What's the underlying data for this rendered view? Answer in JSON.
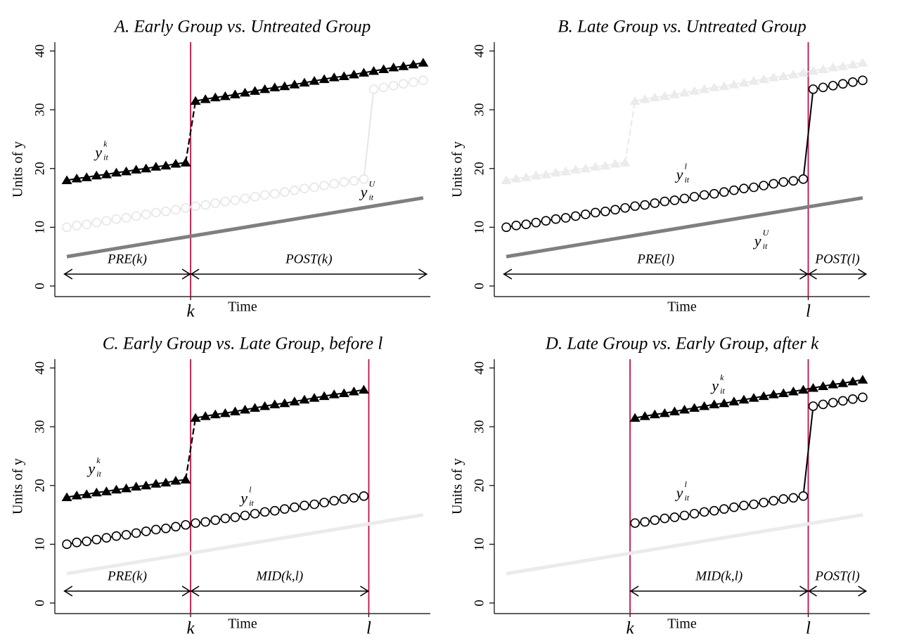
{
  "chart_data": [
    {
      "type": "line",
      "title": "A. Early Group vs. Untreated Group",
      "xlabel": "Time",
      "ylabel": "Units of y",
      "xlim": [
        0,
        38
      ],
      "ylim": [
        -1.8,
        41.5
      ],
      "yticks": [
        0,
        10,
        20,
        30,
        40
      ],
      "xticks": [
        {
          "value": 13.5,
          "label": "k"
        }
      ],
      "vlines": [
        13.5
      ],
      "vline_color": "#c0124a",
      "series": [
        {
          "marker": "circle",
          "color": "#e6e6e6",
          "jump": "solid",
          "x": [
            1,
            2,
            3,
            4,
            5,
            6,
            7,
            8,
            9,
            10,
            11,
            12,
            13,
            14,
            15,
            16,
            17,
            18,
            19,
            20,
            21,
            22,
            23,
            24,
            25,
            26,
            27,
            28,
            29,
            30,
            31,
            32,
            33,
            34,
            35,
            36,
            37
          ],
          "values": [
            10,
            10.3,
            10.5,
            10.8,
            11.1,
            11.4,
            11.6,
            11.9,
            12.2,
            12.5,
            12.7,
            13.0,
            13.3,
            13.6,
            13.8,
            14.1,
            14.4,
            14.6,
            14.9,
            15.2,
            15.5,
            15.7,
            16.0,
            16.3,
            16.6,
            16.8,
            17.1,
            17.4,
            17.7,
            17.9,
            18.2,
            33.5,
            33.8,
            34.1,
            34.4,
            34.7,
            35.0
          ]
        },
        {
          "marker": "none",
          "color": "#7f7f7f",
          "x": [
            1,
            37
          ],
          "values": [
            5,
            15
          ]
        },
        {
          "marker": "triangle",
          "color": "#000000",
          "jump": "dashed",
          "x": [
            1,
            2,
            3,
            4,
            5,
            6,
            7,
            8,
            9,
            10,
            11,
            12,
            13,
            14,
            15,
            16,
            17,
            18,
            19,
            20,
            21,
            22,
            23,
            24,
            25,
            26,
            27,
            28,
            29,
            30,
            31,
            32,
            33,
            34,
            35,
            36,
            37
          ],
          "values": [
            18,
            18.3,
            18.5,
            18.8,
            19,
            19.3,
            19.5,
            19.8,
            20,
            20.3,
            20.5,
            20.8,
            21,
            31.5,
            31.8,
            32.1,
            32.3,
            32.6,
            32.9,
            33.2,
            33.5,
            33.8,
            34.0,
            34.3,
            34.6,
            34.9,
            35.2,
            35.5,
            35.7,
            36.0,
            36.3,
            36.6,
            36.9,
            37.2,
            37.4,
            37.7,
            38.0
          ]
        }
      ],
      "annotations": [
        {
          "text": "y",
          "sup": "k",
          "sub": "it",
          "x": 4.2,
          "y": 22.5
        },
        {
          "text": "y",
          "sup": "U",
          "sub": "it",
          "x": 31,
          "y": 15.7
        }
      ],
      "regions": [
        {
          "label": "PRE(k)",
          "from": 0.7,
          "to": 13.5
        },
        {
          "label": "POST(k)",
          "from": 13.5,
          "to": 37.4
        }
      ]
    },
    {
      "type": "line",
      "title": "B. Late Group vs. Untreated Group",
      "xlabel": "Time",
      "ylabel": "Units of y",
      "xlim": [
        0,
        38
      ],
      "ylim": [
        -1.8,
        41.5
      ],
      "yticks": [
        0,
        10,
        20,
        30,
        40
      ],
      "xticks": [
        {
          "value": 31.5,
          "label": "l"
        }
      ],
      "vlines": [
        31.5
      ],
      "vline_color": "#c0124a",
      "series": [
        {
          "marker": "triangle",
          "color": "#ebebeb",
          "jump": "dashed",
          "x": [
            1,
            2,
            3,
            4,
            5,
            6,
            7,
            8,
            9,
            10,
            11,
            12,
            13,
            14,
            15,
            16,
            17,
            18,
            19,
            20,
            21,
            22,
            23,
            24,
            25,
            26,
            27,
            28,
            29,
            30,
            31,
            32,
            33,
            34,
            35,
            36,
            37
          ],
          "values": [
            18,
            18.3,
            18.5,
            18.8,
            19,
            19.3,
            19.5,
            19.8,
            20,
            20.3,
            20.5,
            20.8,
            21,
            31.5,
            31.8,
            32.1,
            32.3,
            32.6,
            32.9,
            33.2,
            33.5,
            33.8,
            34.0,
            34.3,
            34.6,
            34.9,
            35.2,
            35.5,
            35.7,
            36.0,
            36.3,
            36.6,
            36.9,
            37.2,
            37.4,
            37.7,
            38.0
          ]
        },
        {
          "marker": "none",
          "color": "#7f7f7f",
          "x": [
            1,
            37
          ],
          "values": [
            5,
            15
          ]
        },
        {
          "marker": "circle",
          "color": "#000000",
          "jump": "solid",
          "x": [
            1,
            2,
            3,
            4,
            5,
            6,
            7,
            8,
            9,
            10,
            11,
            12,
            13,
            14,
            15,
            16,
            17,
            18,
            19,
            20,
            21,
            22,
            23,
            24,
            25,
            26,
            27,
            28,
            29,
            30,
            31,
            32,
            33,
            34,
            35,
            36,
            37
          ],
          "values": [
            10,
            10.3,
            10.5,
            10.8,
            11.1,
            11.4,
            11.6,
            11.9,
            12.2,
            12.5,
            12.7,
            13.0,
            13.3,
            13.6,
            13.8,
            14.1,
            14.4,
            14.6,
            14.9,
            15.2,
            15.5,
            15.7,
            16.0,
            16.3,
            16.6,
            16.8,
            17.1,
            17.4,
            17.7,
            17.9,
            18.2,
            33.5,
            33.8,
            34.1,
            34.4,
            34.7,
            35.0
          ]
        }
      ],
      "annotations": [
        {
          "text": "y",
          "sup": "l",
          "sub": "it",
          "x": 18.5,
          "y": 18.7
        },
        {
          "text": "y",
          "sup": "U",
          "sub": "it",
          "x": 26.4,
          "y": 7.4
        }
      ],
      "regions": [
        {
          "label": "PRE(l)",
          "from": 0.7,
          "to": 31.5
        },
        {
          "label": "POST(l)",
          "from": 31.5,
          "to": 37.4
        }
      ]
    },
    {
      "type": "line",
      "title": "C. Early Group vs. Late Group, before l",
      "xlabel": "Time",
      "ylabel": "Units of y",
      "xlim": [
        0,
        38
      ],
      "ylim": [
        -1.8,
        41.5
      ],
      "yticks": [
        0,
        10,
        20,
        30,
        40
      ],
      "xticks": [
        {
          "value": 13.5,
          "label": "k"
        },
        {
          "value": 31.5,
          "label": "l"
        }
      ],
      "vlines": [
        13.5,
        31.5
      ],
      "vline_color": "#c0124a",
      "series": [
        {
          "marker": "none",
          "color": "#ebebeb",
          "x": [
            1,
            37
          ],
          "values": [
            5,
            15
          ]
        },
        {
          "marker": "circle",
          "color": "#000000",
          "jump": "solid",
          "x": [
            1,
            2,
            3,
            4,
            5,
            6,
            7,
            8,
            9,
            10,
            11,
            12,
            13,
            14,
            15,
            16,
            17,
            18,
            19,
            20,
            21,
            22,
            23,
            24,
            25,
            26,
            27,
            28,
            29,
            30,
            31
          ],
          "values": [
            10,
            10.3,
            10.5,
            10.8,
            11.1,
            11.4,
            11.6,
            11.9,
            12.2,
            12.5,
            12.7,
            13.0,
            13.3,
            13.6,
            13.8,
            14.1,
            14.4,
            14.6,
            14.9,
            15.2,
            15.5,
            15.7,
            16.0,
            16.3,
            16.6,
            16.8,
            17.1,
            17.4,
            17.7,
            17.9,
            18.2
          ]
        },
        {
          "marker": "triangle",
          "color": "#000000",
          "jump": "dashed",
          "x": [
            1,
            2,
            3,
            4,
            5,
            6,
            7,
            8,
            9,
            10,
            11,
            12,
            13,
            14,
            15,
            16,
            17,
            18,
            19,
            20,
            21,
            22,
            23,
            24,
            25,
            26,
            27,
            28,
            29,
            30,
            31
          ],
          "values": [
            18,
            18.3,
            18.5,
            18.8,
            19,
            19.3,
            19.5,
            19.8,
            20,
            20.3,
            20.5,
            20.8,
            21,
            31.5,
            31.8,
            32.1,
            32.3,
            32.6,
            32.9,
            33.2,
            33.5,
            33.8,
            34.0,
            34.3,
            34.6,
            34.9,
            35.2,
            35.5,
            35.7,
            36.0,
            36.3
          ]
        }
      ],
      "annotations": [
        {
          "text": "y",
          "sup": "k",
          "sub": "it",
          "x": 3.5,
          "y": 22.6
        },
        {
          "text": "y",
          "sup": "l",
          "sub": "it",
          "x": 18.9,
          "y": 17.6
        }
      ],
      "regions": [
        {
          "label": "PRE(k)",
          "from": 0.7,
          "to": 13.5
        },
        {
          "label": "MID(k,l)",
          "from": 13.5,
          "to": 31.5
        }
      ]
    },
    {
      "type": "line",
      "title": "D. Late Group vs. Early Group, after k",
      "xlabel": "Time",
      "ylabel": "Units of y",
      "xlim": [
        0,
        38
      ],
      "ylim": [
        -1.8,
        41.5
      ],
      "yticks": [
        0,
        10,
        20,
        30,
        40
      ],
      "xticks": [
        {
          "value": 13.5,
          "label": "k"
        },
        {
          "value": 31.5,
          "label": "l"
        }
      ],
      "vlines": [
        13.5,
        31.5
      ],
      "vline_color": "#c0124a",
      "series": [
        {
          "marker": "none",
          "color": "#ebebeb",
          "x": [
            1,
            37
          ],
          "values": [
            5,
            15
          ]
        },
        {
          "marker": "triangle",
          "color": "#000000",
          "jump": "dashed",
          "x": [
            14,
            15,
            16,
            17,
            18,
            19,
            20,
            21,
            22,
            23,
            24,
            25,
            26,
            27,
            28,
            29,
            30,
            31,
            32,
            33,
            34,
            35,
            36,
            37
          ],
          "values": [
            31.5,
            31.8,
            32.1,
            32.3,
            32.6,
            32.9,
            33.2,
            33.5,
            33.8,
            34.0,
            34.3,
            34.6,
            34.9,
            35.2,
            35.5,
            35.7,
            36.0,
            36.3,
            36.6,
            36.9,
            37.2,
            37.4,
            37.7,
            38.0
          ]
        },
        {
          "marker": "circle",
          "color": "#000000",
          "jump": "solid",
          "x": [
            14,
            15,
            16,
            17,
            18,
            19,
            20,
            21,
            22,
            23,
            24,
            25,
            26,
            27,
            28,
            29,
            30,
            31,
            32,
            33,
            34,
            35,
            36,
            37
          ],
          "values": [
            13.6,
            13.8,
            14.1,
            14.4,
            14.6,
            14.9,
            15.2,
            15.5,
            15.7,
            16.0,
            16.3,
            16.6,
            16.8,
            17.1,
            17.4,
            17.7,
            17.9,
            18.2,
            33.5,
            33.8,
            34.1,
            34.4,
            34.7,
            35.0
          ]
        }
      ],
      "annotations": [
        {
          "text": "y",
          "sup": "k",
          "sub": "it",
          "x": 22.1,
          "y": 36.7
        },
        {
          "text": "y",
          "sup": "l",
          "sub": "it",
          "x": 18.5,
          "y": 18.5
        }
      ],
      "regions": [
        {
          "label": "MID(k,l)",
          "from": 13.5,
          "to": 31.5
        },
        {
          "label": "POST(l)",
          "from": 31.5,
          "to": 37.4
        }
      ]
    }
  ]
}
